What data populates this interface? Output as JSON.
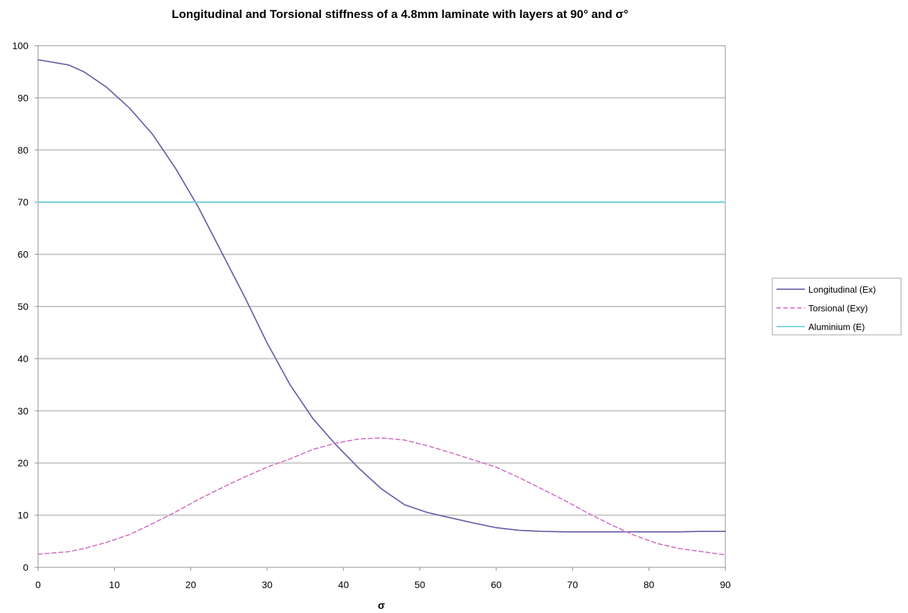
{
  "chart_data": {
    "type": "line",
    "title": "Longitudinal and Torsional stiffness of a 4.8mm laminate with layers at 90° and σ°",
    "xlabel": "σ",
    "ylabel": "",
    "xlim": [
      0,
      90
    ],
    "ylim": [
      0,
      100
    ],
    "xticks": [
      0,
      10,
      20,
      30,
      40,
      50,
      60,
      70,
      80,
      90
    ],
    "yticks": [
      0,
      10,
      20,
      30,
      40,
      50,
      60,
      70,
      80,
      90,
      100
    ],
    "grid": "horizontal",
    "legend_position": "right",
    "series": [
      {
        "name": "Longitudinal (Ex)",
        "color": "#6b5fa6",
        "style": "solid",
        "x": [
          0,
          4,
          6,
          9,
          12,
          15,
          18,
          21,
          24,
          27,
          30,
          33,
          36,
          39,
          42,
          45,
          48,
          51,
          54,
          57,
          60,
          63,
          66,
          69,
          72,
          75,
          78,
          81,
          84,
          87,
          90
        ],
        "y": [
          97.3,
          96.3,
          95,
          92,
          88,
          83,
          76.5,
          69,
          60.5,
          52,
          43,
          35,
          28.5,
          23.5,
          19,
          15,
          12,
          10.5,
          9.5,
          8.5,
          7.6,
          7.1,
          6.9,
          6.8,
          6.8,
          6.8,
          6.8,
          6.8,
          6.8,
          6.9,
          6.9
        ]
      },
      {
        "name": "Torsional (Exy)",
        "color": "#cf6fc4",
        "style": "dashed",
        "x": [
          0,
          4,
          6,
          9,
          12,
          15,
          18,
          21,
          24,
          27,
          30,
          33,
          36,
          39,
          42,
          45,
          48,
          51,
          54,
          57,
          60,
          63,
          66,
          69,
          72,
          75,
          78,
          81,
          84,
          87,
          90
        ],
        "y": [
          2.5,
          3,
          3.6,
          4.8,
          6.3,
          8.4,
          10.6,
          13,
          15.2,
          17.3,
          19.2,
          20.8,
          22.6,
          23.8,
          24.6,
          24.8,
          24.4,
          23.3,
          22,
          20.6,
          19.2,
          17.2,
          15,
          12.8,
          10.4,
          8.2,
          6.2,
          4.6,
          3.6,
          3,
          2.4
        ]
      },
      {
        "name": "Aluminium (E)",
        "color": "#6fcfe0",
        "style": "solid",
        "x": [
          0,
          90
        ],
        "y": [
          70,
          70
        ]
      }
    ]
  }
}
